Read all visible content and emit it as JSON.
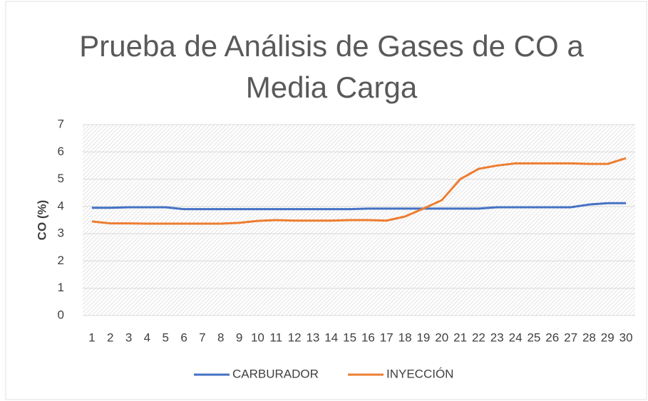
{
  "chart_data": {
    "type": "line",
    "title": "Prueba de Análisis de Gases de CO a Media Carga",
    "y_label": "CO (%)",
    "categories": [
      "1",
      "2",
      "3",
      "4",
      "5",
      "6",
      "7",
      "8",
      "9",
      "10",
      "11",
      "12",
      "13",
      "14",
      "15",
      "16",
      "17",
      "18",
      "19",
      "20",
      "21",
      "22",
      "23",
      "24",
      "25",
      "26",
      "27",
      "28",
      "29",
      "30"
    ],
    "series": [
      {
        "name": "CARBURADOR",
        "color": "#4472c4",
        "values": [
          3.95,
          3.95,
          3.97,
          3.97,
          3.97,
          3.9,
          3.9,
          3.9,
          3.9,
          3.9,
          3.9,
          3.9,
          3.9,
          3.9,
          3.9,
          3.92,
          3.92,
          3.92,
          3.92,
          3.92,
          3.92,
          3.92,
          3.97,
          3.97,
          3.97,
          3.97,
          3.97,
          4.07,
          4.12,
          4.12
        ]
      },
      {
        "name": "INYECCIÓN",
        "color": "#ed7d31",
        "values": [
          3.45,
          3.38,
          3.38,
          3.37,
          3.37,
          3.37,
          3.37,
          3.37,
          3.4,
          3.47,
          3.5,
          3.48,
          3.48,
          3.48,
          3.5,
          3.5,
          3.48,
          3.63,
          3.92,
          4.23,
          5.0,
          5.38,
          5.5,
          5.58,
          5.58,
          5.58,
          5.58,
          5.56,
          5.56,
          5.77
        ]
      }
    ],
    "ylim": [
      0,
      7
    ],
    "yticks": [
      0,
      1,
      2,
      3,
      4,
      5,
      6,
      7
    ],
    "grid": true,
    "legend": "bottom"
  }
}
